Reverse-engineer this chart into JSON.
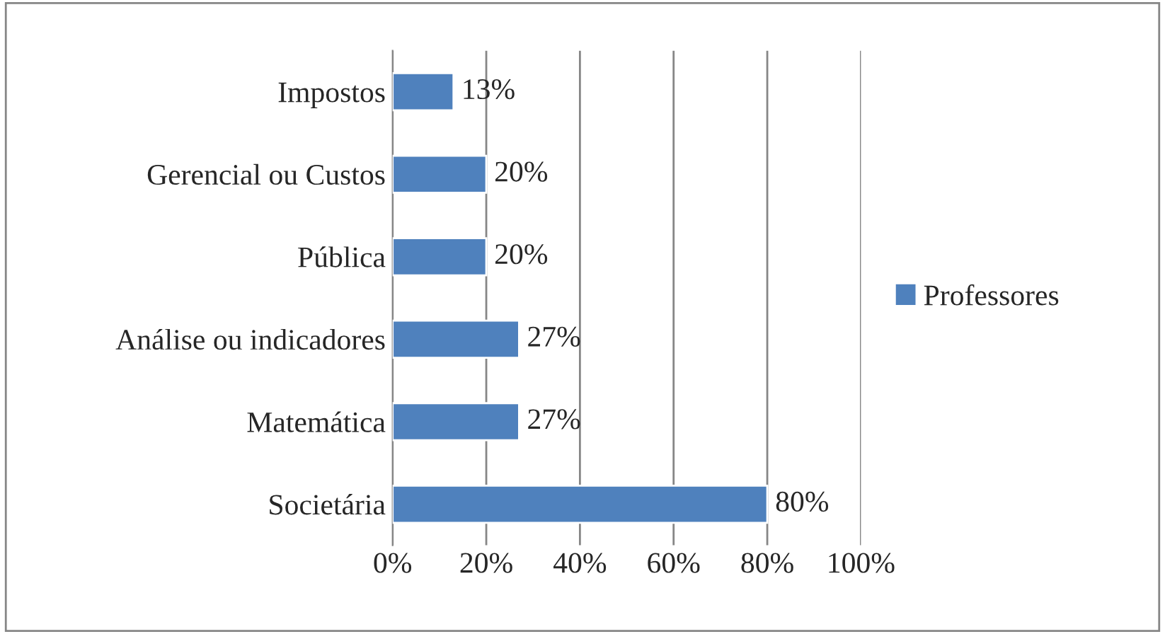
{
  "chart_data": {
    "type": "bar",
    "orientation": "horizontal",
    "categories": [
      "Impostos",
      "Gerencial ou Custos",
      "Pública",
      "Análise ou indicadores",
      "Matemática",
      "Societária"
    ],
    "series": [
      {
        "name": "Professores",
        "color": "#4f81bd",
        "values": [
          13,
          20,
          20,
          27,
          27,
          80
        ],
        "value_labels": [
          "13%",
          "20%",
          "20%",
          "27%",
          "27%",
          "80%"
        ]
      }
    ],
    "xlim": [
      0,
      100
    ],
    "xticks": [
      {
        "value": 0,
        "label": "0%"
      },
      {
        "value": 20,
        "label": "20%"
      },
      {
        "value": 40,
        "label": "40%"
      },
      {
        "value": 60,
        "label": "60%"
      },
      {
        "value": 80,
        "label": "80%"
      },
      {
        "value": 100,
        "label": "100%"
      }
    ],
    "grid": "x",
    "legend": "right"
  }
}
